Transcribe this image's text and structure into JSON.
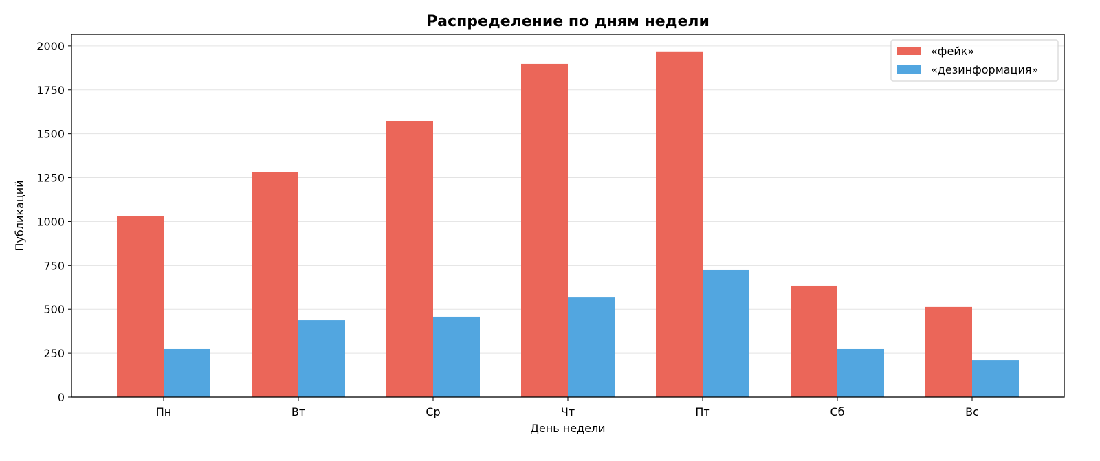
{
  "chart_data": {
    "type": "bar",
    "title": "Распределение по дням недели",
    "xlabel": "День недели",
    "ylabel": "Публикаций",
    "categories": [
      "Пн",
      "Вт",
      "Ср",
      "Чт",
      "Пт",
      "Сб",
      "Вс"
    ],
    "series": [
      {
        "name": "«фейк»",
        "color": "#EB6659",
        "values": [
          1033,
          1280,
          1573,
          1898,
          1969,
          634,
          513
        ]
      },
      {
        "name": "«дезинформация»",
        "color": "#52A6E0",
        "values": [
          274,
          438,
          458,
          567,
          724,
          274,
          211
        ]
      }
    ],
    "ylim": [
      0,
      2066
    ],
    "yticks": [
      0,
      250,
      500,
      750,
      1000,
      1250,
      1500,
      1750,
      2000
    ],
    "grid": "horizontal",
    "legend": "top-right"
  }
}
